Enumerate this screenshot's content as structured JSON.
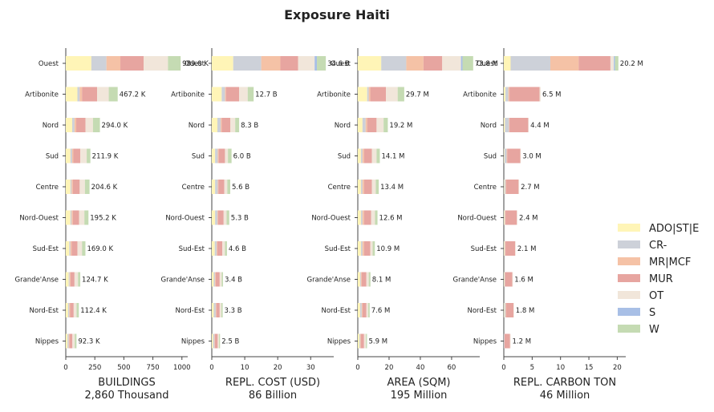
{
  "title": "Exposure Haiti",
  "chart_data": {
    "type": "bar",
    "orientation": "horizontal-stacked",
    "categories": [
      "Ouest",
      "Artibonite",
      "Nord",
      "Sud",
      "Centre",
      "Nord-Ouest",
      "Sud-Est",
      "Grande'Anse",
      "Nord-Est",
      "Nippes"
    ],
    "legend": [
      {
        "name": "ADO|ST|E",
        "color": "#fff5b7"
      },
      {
        "name": "CR-",
        "color": "#cdd1d9"
      },
      {
        "name": "MR|MCF",
        "color": "#f5c2a6"
      },
      {
        "name": "MUR",
        "color": "#e7a5a0"
      },
      {
        "name": "OT",
        "color": "#f1e6da"
      },
      {
        "name": "S",
        "color": "#a8bfe6"
      },
      {
        "name": "W",
        "color": "#c5dbb3"
      }
    ],
    "legend_position": "right",
    "panels": [
      {
        "xlabel": "BUILDINGS",
        "subtitle": "2,860 Thousand",
        "xlim": [
          0,
          1050
        ],
        "ticks": [
          0,
          250,
          500,
          750,
          1000
        ],
        "totals": [
          989.0,
          467.2,
          294.0,
          211.9,
          204.6,
          195.2,
          169.0,
          124.7,
          112.4,
          92.3
        ],
        "value_labels": [
          "989.0 K",
          "467.2 K",
          "294.0 K",
          "211.9 K",
          "204.6 K",
          "195.2 K",
          "169.0 K",
          "124.7 K",
          "112.4 K",
          "92.3 K"
        ],
        "segments": [
          [
            220,
            130,
            120,
            200,
            210,
            0,
            109
          ],
          [
            100,
            20,
            20,
            130,
            100,
            0,
            77
          ],
          [
            55,
            20,
            15,
            80,
            64,
            0,
            60
          ],
          [
            40,
            15,
            10,
            60,
            55,
            0,
            31.9
          ],
          [
            40,
            10,
            10,
            60,
            45,
            0,
            39.6
          ],
          [
            40,
            10,
            10,
            55,
            45,
            0,
            35.2
          ],
          [
            30,
            10,
            10,
            50,
            40,
            0,
            29
          ],
          [
            25,
            8,
            7,
            35,
            30,
            0,
            19.7
          ],
          [
            20,
            10,
            8,
            30,
            25,
            0,
            19.4
          ],
          [
            15,
            10,
            7,
            25,
            20,
            0,
            15.3
          ]
        ]
      },
      {
        "xlabel": "REPL. COST (USD)",
        "subtitle": "86 Billion",
        "xlim": [
          0,
          37
        ],
        "ticks": [
          0,
          10,
          20,
          30
        ],
        "totals": [
          34.6,
          12.7,
          8.3,
          6.0,
          5.6,
          5.3,
          4.6,
          3.4,
          3.3,
          2.5
        ],
        "value_labels": [
          "34.6 B",
          "12.7 B",
          "8.3 B",
          "6.0 B",
          "5.6 B",
          "5.3 B",
          "4.6 B",
          "3.4 B",
          "3.3 B",
          "2.5 B"
        ],
        "segments": [
          [
            6.5,
            8.5,
            5.8,
            5.4,
            5.0,
            0.7,
            2.7
          ],
          [
            3.0,
            1.0,
            0.3,
            4.0,
            2.6,
            0,
            1.8
          ],
          [
            1.7,
            1.0,
            0.3,
            2.6,
            1.5,
            0,
            1.2
          ],
          [
            1.0,
            0.8,
            0.3,
            1.9,
            0.9,
            0,
            1.1
          ],
          [
            1.0,
            0.8,
            0.2,
            1.8,
            0.9,
            0,
            0.9
          ],
          [
            1.0,
            0.7,
            0.2,
            1.7,
            0.9,
            0,
            0.8
          ],
          [
            0.9,
            0.6,
            0.2,
            1.5,
            0.8,
            0,
            0.6
          ],
          [
            0.6,
            0.4,
            0.2,
            1.2,
            0.6,
            0,
            0.4
          ],
          [
            0.6,
            0.6,
            0.2,
            1.0,
            0.5,
            0,
            0.4
          ],
          [
            0.4,
            0.4,
            0.1,
            0.9,
            0.4,
            0,
            0.3
          ]
        ]
      },
      {
        "xlabel": "AREA (SQM)",
        "subtitle": "195 Million",
        "xlim": [
          0,
          78
        ],
        "ticks": [
          0,
          20,
          40,
          60
        ],
        "totals": [
          73.8,
          29.7,
          19.2,
          14.1,
          13.4,
          12.6,
          10.9,
          8.1,
          7.6,
          5.9
        ],
        "value_labels": [
          "73.8 M",
          "29.7 M",
          "19.2 M",
          "14.1 M",
          "13.4 M",
          "12.6 M",
          "10.9 M",
          "8.1 M",
          "7.6 M",
          "5.9 M"
        ],
        "segments": [
          [
            15,
            16,
            11,
            12,
            12,
            1.0,
            6.8
          ],
          [
            6,
            1,
            1,
            10,
            7.5,
            0,
            4.2
          ],
          [
            3,
            2,
            1,
            6,
            4.5,
            0,
            2.7
          ],
          [
            2,
            1,
            1,
            5,
            3,
            0,
            2.1
          ],
          [
            2,
            1,
            1,
            5,
            2.5,
            0,
            1.9
          ],
          [
            2,
            1,
            1,
            4.5,
            2.5,
            0,
            1.6
          ],
          [
            2,
            1,
            1,
            4,
            1.5,
            0,
            1.4
          ],
          [
            1.5,
            0.5,
            0.5,
            3,
            1.5,
            0,
            1.1
          ],
          [
            1.5,
            1,
            0.5,
            2.5,
            1.2,
            0,
            0.9
          ],
          [
            1,
            0.5,
            0.5,
            2,
            1.2,
            0,
            0.7
          ]
        ]
      },
      {
        "xlabel": "REPL. CARBON TON",
        "subtitle": "46 Million",
        "xlim": [
          0,
          21.5
        ],
        "ticks": [
          0,
          5,
          10,
          15,
          20
        ],
        "totals": [
          20.2,
          6.5,
          4.4,
          3.0,
          2.7,
          2.4,
          2.1,
          1.6,
          1.8,
          1.2
        ],
        "value_labels": [
          "20.2 M",
          "6.5 M",
          "4.4 M",
          "3.0 M",
          "2.7 M",
          "2.4 M",
          "2.1 M",
          "1.6 M",
          "1.8 M",
          "1.2 M"
        ],
        "segments": [
          [
            1.2,
            7.0,
            5.0,
            5.6,
            0.6,
            0.2,
            0.6
          ],
          [
            0.3,
            0.5,
            0.2,
            5.3,
            0.2,
            0,
            0
          ],
          [
            0.2,
            0.7,
            0.1,
            3.3,
            0.1,
            0,
            0
          ],
          [
            0.1,
            0.4,
            0.1,
            2.3,
            0.1,
            0,
            0
          ],
          [
            0.1,
            0.2,
            0.1,
            2.2,
            0.1,
            0,
            0
          ],
          [
            0.1,
            0.1,
            0.1,
            2.0,
            0.1,
            0,
            0
          ],
          [
            0.1,
            0.1,
            0.1,
            1.7,
            0.1,
            0,
            0
          ],
          [
            0.1,
            0.1,
            0,
            1.3,
            0.1,
            0,
            0
          ],
          [
            0.1,
            0.2,
            0.1,
            1.3,
            0.1,
            0,
            0
          ],
          [
            0,
            0.1,
            0,
            1.0,
            0.1,
            0,
            0
          ]
        ]
      }
    ]
  }
}
